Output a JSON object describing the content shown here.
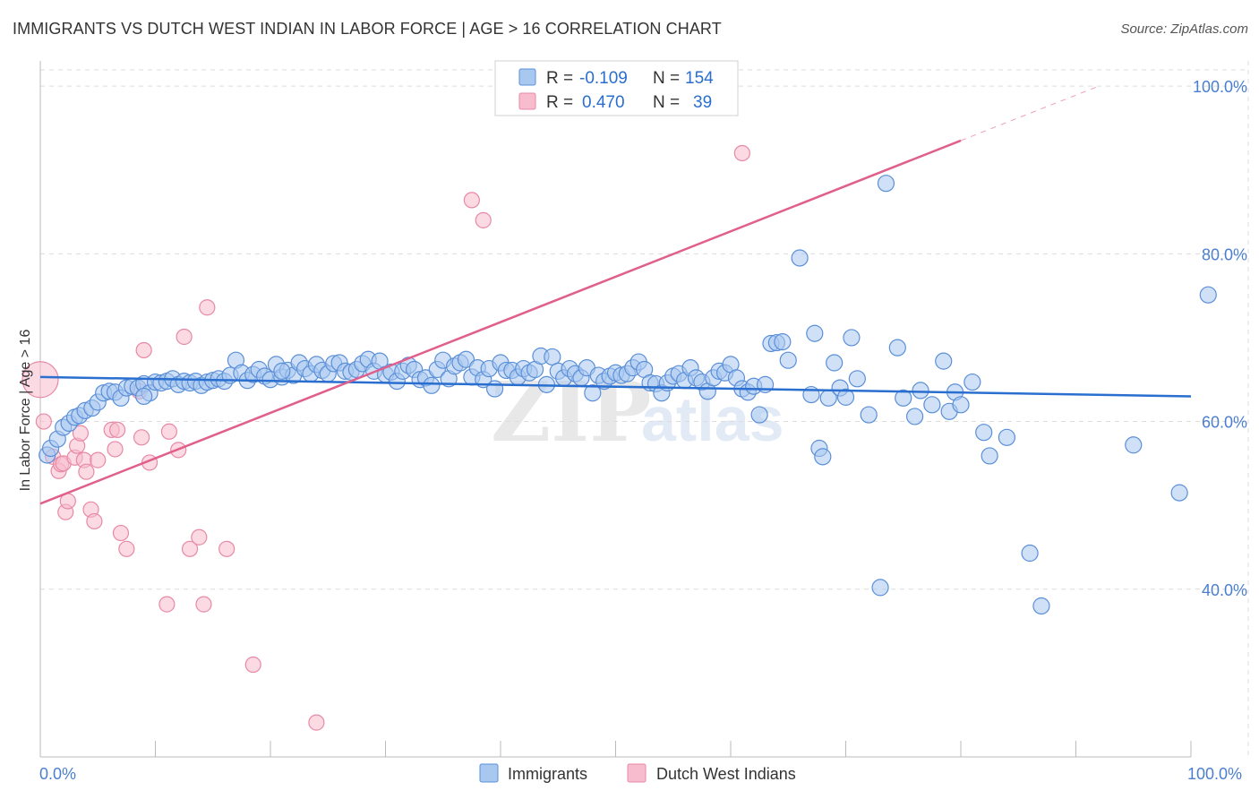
{
  "chart_data": {
    "type": "scatter",
    "title": "IMMIGRANTS VS DUTCH WEST INDIAN IN LABOR FORCE | AGE > 16 CORRELATION CHART",
    "source": "Source: ZipAtlas.com",
    "xlabel": "",
    "ylabel": "In Labor Force | Age > 16",
    "xlim": [
      0,
      100
    ],
    "ylim": [
      20,
      103
    ],
    "x_tick_labels": [
      "0.0%",
      "100.0%"
    ],
    "y_ticks": [
      40,
      60,
      80,
      100
    ],
    "y_tick_labels": [
      "40.0%",
      "60.0%",
      "80.0%",
      "100.0%"
    ],
    "watermark": {
      "zip": "ZIP",
      "atlas": "atlas"
    },
    "legend": {
      "rows": [
        {
          "r_label": "R = ",
          "r_value": "-0.109",
          "n_label": "N = ",
          "n_value": "154"
        },
        {
          "r_label": "R = ",
          "r_value": "0.470",
          "n_label": "N = ",
          "n_value": "39"
        }
      ]
    },
    "colors": {
      "immigrants_fill": "#a9c8f0",
      "immigrants_stroke": "#5a8fd8",
      "immigrants_line": "#2a6fcf",
      "dutch_fill": "#f7bccd",
      "dutch_stroke": "#e889a6",
      "dutch_line": "#e05f8c",
      "accent_text": "#2a6fcf",
      "grid": "#dcdcdc"
    },
    "series": [
      {
        "name": "Immigrants",
        "trend": {
          "x": [
            0,
            100
          ],
          "y": [
            65.3,
            63.0
          ]
        },
        "points": [
          [
            0.6,
            56.0
          ],
          [
            0.9,
            56.8
          ],
          [
            1.5,
            57.9
          ],
          [
            2.0,
            59.3
          ],
          [
            2.5,
            59.8
          ],
          [
            3.0,
            60.5
          ],
          [
            3.4,
            60.7
          ],
          [
            3.9,
            61.3
          ],
          [
            4.5,
            61.6
          ],
          [
            5.0,
            62.3
          ],
          [
            5.5,
            63.4
          ],
          [
            6.0,
            63.6
          ],
          [
            6.5,
            63.5
          ],
          [
            7.0,
            62.8
          ],
          [
            7.5,
            64.0
          ],
          [
            8.0,
            64.2
          ],
          [
            8.5,
            64.0
          ],
          [
            9.0,
            64.5
          ],
          [
            9.5,
            63.4
          ],
          [
            10.0,
            64.7
          ],
          [
            10.5,
            64.6
          ],
          [
            11.0,
            64.8
          ],
          [
            11.5,
            65.1
          ],
          [
            12.0,
            64.4
          ],
          [
            12.5,
            64.8
          ],
          [
            13.0,
            64.6
          ],
          [
            13.5,
            64.8
          ],
          [
            14.0,
            64.3
          ],
          [
            14.5,
            64.7
          ],
          [
            15.0,
            64.9
          ],
          [
            15.5,
            65.1
          ],
          [
            16.0,
            64.8
          ],
          [
            16.5,
            65.5
          ],
          [
            17.0,
            67.3
          ],
          [
            17.5,
            65.8
          ],
          [
            18.0,
            64.9
          ],
          [
            18.5,
            65.6
          ],
          [
            19.0,
            66.2
          ],
          [
            19.5,
            65.4
          ],
          [
            20.0,
            65.0
          ],
          [
            20.5,
            66.8
          ],
          [
            21.0,
            65.3
          ],
          [
            21.5,
            66.1
          ],
          [
            22.0,
            65.5
          ],
          [
            22.5,
            67.0
          ],
          [
            23.0,
            66.3
          ],
          [
            23.5,
            65.7
          ],
          [
            24.0,
            66.8
          ],
          [
            24.5,
            66.1
          ],
          [
            25.0,
            65.7
          ],
          [
            25.5,
            66.9
          ],
          [
            26.0,
            67.0
          ],
          [
            26.5,
            66.0
          ],
          [
            27.0,
            65.9
          ],
          [
            27.5,
            66.2
          ],
          [
            28.0,
            66.9
          ],
          [
            28.5,
            67.4
          ],
          [
            29.0,
            66.0
          ],
          [
            29.5,
            67.2
          ],
          [
            30.0,
            65.6
          ],
          [
            30.5,
            65.9
          ],
          [
            31.0,
            64.8
          ],
          [
            31.5,
            66.0
          ],
          [
            32.0,
            66.7
          ],
          [
            32.5,
            66.2
          ],
          [
            33.0,
            65.0
          ],
          [
            33.5,
            65.2
          ],
          [
            34.0,
            64.3
          ],
          [
            34.5,
            66.2
          ],
          [
            35.0,
            67.3
          ],
          [
            35.5,
            65.1
          ],
          [
            36.0,
            66.6
          ],
          [
            36.5,
            67.0
          ],
          [
            37.0,
            67.4
          ],
          [
            37.5,
            65.3
          ],
          [
            38.0,
            66.4
          ],
          [
            38.5,
            65.0
          ],
          [
            39.0,
            66.3
          ],
          [
            39.5,
            63.9
          ],
          [
            40.0,
            67.0
          ],
          [
            40.5,
            66.1
          ],
          [
            41.0,
            66.1
          ],
          [
            41.5,
            65.3
          ],
          [
            42.0,
            66.3
          ],
          [
            42.5,
            65.8
          ],
          [
            43.0,
            66.2
          ],
          [
            43.5,
            67.8
          ],
          [
            44.0,
            64.4
          ],
          [
            44.5,
            67.7
          ],
          [
            45.0,
            66.0
          ],
          [
            45.5,
            65.2
          ],
          [
            46.0,
            66.3
          ],
          [
            46.5,
            65.7
          ],
          [
            47.0,
            65.2
          ],
          [
            47.5,
            66.4
          ],
          [
            48.0,
            63.4
          ],
          [
            48.5,
            65.5
          ],
          [
            49.0,
            64.8
          ],
          [
            49.5,
            65.4
          ],
          [
            50.0,
            65.8
          ],
          [
            50.5,
            65.5
          ],
          [
            51.0,
            65.7
          ],
          [
            51.5,
            66.4
          ],
          [
            52.0,
            67.1
          ],
          [
            52.5,
            66.2
          ],
          [
            53.0,
            64.6
          ],
          [
            53.5,
            64.5
          ],
          [
            54.0,
            63.4
          ],
          [
            54.5,
            64.6
          ],
          [
            55.0,
            65.4
          ],
          [
            55.5,
            65.7
          ],
          [
            56.0,
            64.9
          ],
          [
            56.5,
            66.4
          ],
          [
            57.0,
            65.2
          ],
          [
            57.5,
            64.7
          ],
          [
            58.0,
            63.6
          ],
          [
            58.5,
            65.2
          ],
          [
            59.0,
            66.0
          ],
          [
            59.5,
            65.8
          ],
          [
            60.0,
            66.8
          ],
          [
            60.5,
            65.2
          ],
          [
            61.0,
            63.9
          ],
          [
            61.5,
            63.5
          ],
          [
            62.0,
            64.2
          ],
          [
            62.5,
            60.8
          ],
          [
            63.0,
            64.4
          ],
          [
            63.5,
            69.3
          ],
          [
            64.0,
            69.4
          ],
          [
            64.5,
            69.5
          ],
          [
            65.0,
            67.3
          ],
          [
            66.0,
            79.5
          ],
          [
            67.0,
            63.2
          ],
          [
            67.3,
            70.5
          ],
          [
            67.7,
            56.8
          ],
          [
            68.0,
            55.8
          ],
          [
            68.5,
            62.8
          ],
          [
            69.0,
            67.0
          ],
          [
            69.5,
            64.0
          ],
          [
            70.0,
            62.9
          ],
          [
            70.5,
            70.0
          ],
          [
            71.0,
            65.1
          ],
          [
            72.0,
            60.8
          ],
          [
            73.0,
            40.2
          ],
          [
            73.5,
            88.4
          ],
          [
            74.5,
            68.8
          ],
          [
            75.0,
            62.8
          ],
          [
            76.0,
            60.6
          ],
          [
            76.5,
            63.7
          ],
          [
            77.5,
            62.0
          ],
          [
            78.5,
            67.2
          ],
          [
            79.0,
            61.2
          ],
          [
            79.5,
            63.5
          ],
          [
            80.0,
            62.0
          ],
          [
            81.0,
            64.7
          ],
          [
            82.0,
            58.7
          ],
          [
            82.5,
            55.9
          ],
          [
            84.0,
            58.1
          ],
          [
            86.0,
            44.3
          ],
          [
            87.0,
            38.0
          ],
          [
            95.0,
            57.2
          ],
          [
            99.0,
            51.5
          ],
          [
            101.5,
            75.1
          ],
          [
            9.0,
            63.0
          ],
          [
            21.0,
            66.0
          ]
        ]
      },
      {
        "name": "Dutch West Indians",
        "trend": {
          "x": [
            0,
            80
          ],
          "y": [
            50.2,
            93.5
          ]
        },
        "trend_dashed": {
          "x": [
            80,
            92
          ],
          "y": [
            93.5,
            100.0
          ]
        },
        "points": [
          [
            0.0,
            65.0
          ],
          [
            0.3,
            60.0
          ],
          [
            1.1,
            55.8
          ],
          [
            1.6,
            54.1
          ],
          [
            1.8,
            54.9
          ],
          [
            2.0,
            55.0
          ],
          [
            2.2,
            49.2
          ],
          [
            2.4,
            50.5
          ],
          [
            3.0,
            55.7
          ],
          [
            3.2,
            57.1
          ],
          [
            3.5,
            58.6
          ],
          [
            3.8,
            55.4
          ],
          [
            4.0,
            54.0
          ],
          [
            4.4,
            49.5
          ],
          [
            4.7,
            48.1
          ],
          [
            5.0,
            55.4
          ],
          [
            6.2,
            59.0
          ],
          [
            6.5,
            56.7
          ],
          [
            6.7,
            59.0
          ],
          [
            7.0,
            46.7
          ],
          [
            7.5,
            44.8
          ],
          [
            8.6,
            63.6
          ],
          [
            8.8,
            58.1
          ],
          [
            9.0,
            68.5
          ],
          [
            9.5,
            55.1
          ],
          [
            11.0,
            38.2
          ],
          [
            11.2,
            58.8
          ],
          [
            12.0,
            56.6
          ],
          [
            12.5,
            70.1
          ],
          [
            13.0,
            44.8
          ],
          [
            13.8,
            46.2
          ],
          [
            14.2,
            38.2
          ],
          [
            14.5,
            73.6
          ],
          [
            16.2,
            44.8
          ],
          [
            18.5,
            31.0
          ],
          [
            24.0,
            24.1
          ],
          [
            37.5,
            86.4
          ],
          [
            38.5,
            84.0
          ],
          [
            61.0,
            92.0
          ]
        ]
      }
    ]
  }
}
